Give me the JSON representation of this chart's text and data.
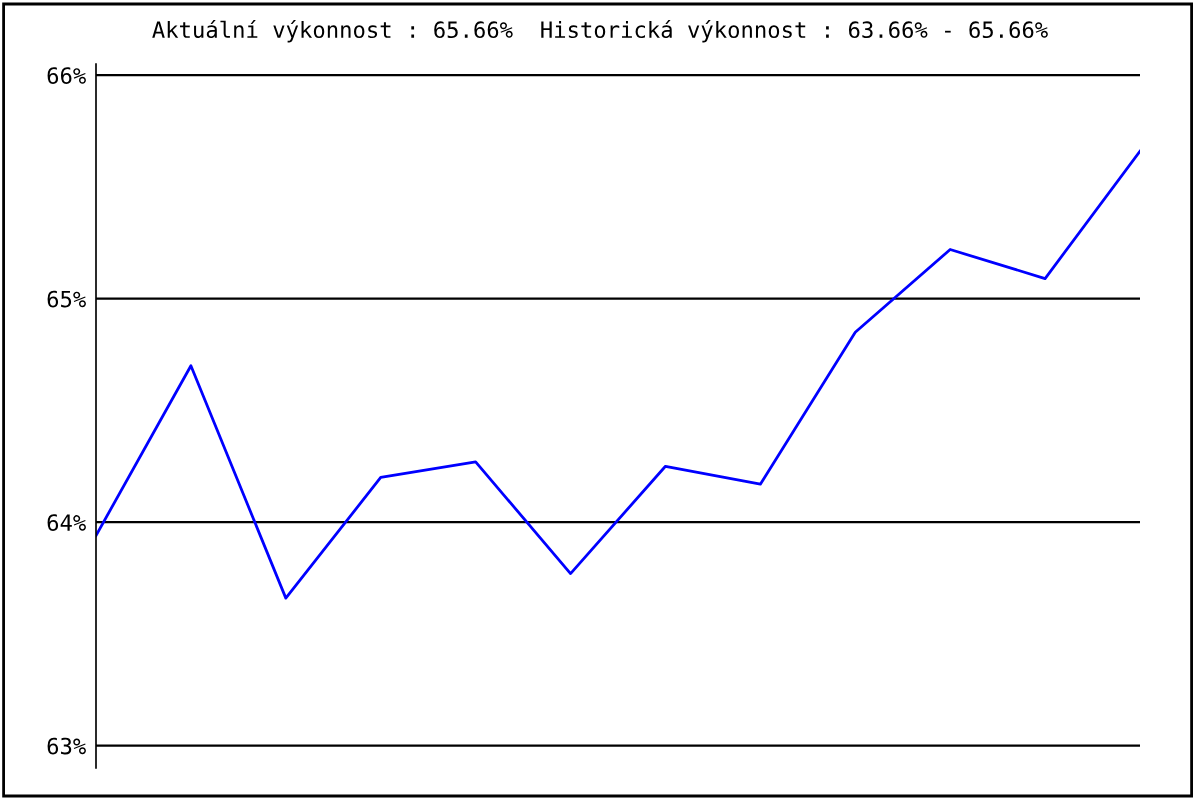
{
  "chart_data": {
    "type": "line",
    "title": "Aktuální výkonnost : 65.66%  Historická výkonnost : 63.66% - 65.66%",
    "categories": [
      null,
      null,
      null,
      null,
      null,
      null,
      null,
      null,
      null,
      null,
      null,
      null
    ],
    "series": [
      {
        "color": "#0000ff",
        "values": [
          63.94,
          64.7,
          63.66,
          64.2,
          64.27,
          63.77,
          64.25,
          64.17,
          64.85,
          65.22,
          65.09,
          65.66
        ]
      }
    ],
    "ylim": [
      62.9,
      66.05
    ],
    "yticks": [
      {
        "value": 63,
        "label": "63%"
      },
      {
        "value": 64,
        "label": "64%"
      },
      {
        "value": 65,
        "label": "65%"
      },
      {
        "value": 66,
        "label": "66%"
      }
    ],
    "grid": "y",
    "marker": "none",
    "line_style": "solid"
  }
}
